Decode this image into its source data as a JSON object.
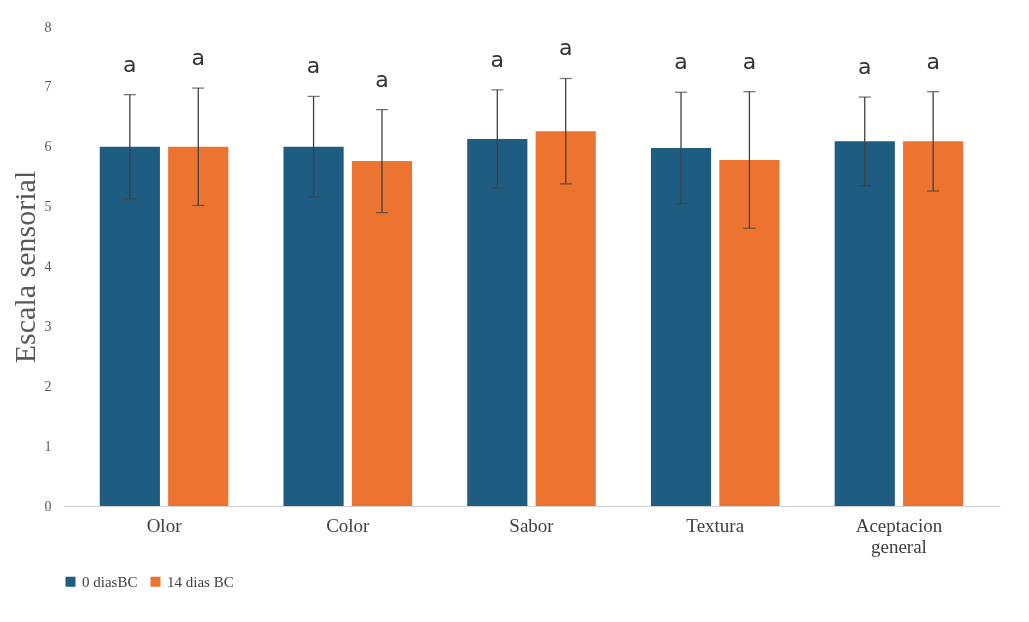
{
  "chart_data": {
    "type": "bar",
    "ylabel": "Escala sensorial",
    "categories": [
      "Olor",
      "Color",
      "Sabor",
      "Textura",
      "Aceptacion general"
    ],
    "series": [
      {
        "name": "0 diasBC",
        "color": "#1f5c82",
        "values": [
          6.0,
          6.0,
          6.13,
          5.98,
          6.09
        ],
        "errors": [
          0.87,
          0.84,
          0.82,
          0.93,
          0.74
        ]
      },
      {
        "name": "14 dias BC",
        "color": "#ed7330",
        "values": [
          6.0,
          5.76,
          6.26,
          5.78,
          6.09
        ],
        "errors": [
          0.98,
          0.86,
          0.88,
          1.14,
          0.83
        ]
      }
    ],
    "annotations": [
      "a",
      "a",
      "a",
      "a",
      "a",
      "a",
      "a",
      "a",
      "a",
      "a"
    ],
    "ylim": [
      0,
      8
    ],
    "yticks": [
      0,
      1,
      2,
      3,
      4,
      5,
      6,
      7,
      8
    ],
    "grid": false,
    "legend": "bottom"
  }
}
